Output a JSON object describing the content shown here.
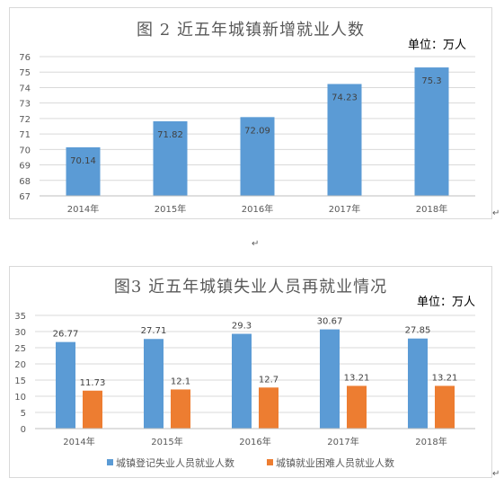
{
  "chart_data": [
    {
      "type": "bar",
      "title": "图 2 近五年城镇新增就业人数",
      "unit_label": "单位：万人",
      "categories": [
        "2014年",
        "2015年",
        "2016年",
        "2017年",
        "2018年"
      ],
      "series": [
        {
          "values": [
            70.14,
            71.82,
            72.09,
            74.23,
            75.3
          ],
          "color": "#5b9bd5"
        }
      ],
      "data_labels": [
        "70.14",
        "71.82",
        "72.09",
        "74.23",
        "75.3"
      ],
      "yticks": [
        "67",
        "68",
        "69",
        "70",
        "71",
        "72",
        "73",
        "74",
        "75",
        "76"
      ],
      "ylim": [
        67,
        76
      ],
      "grid": true,
      "legend": "none"
    },
    {
      "type": "bar",
      "title": "图3 近五年城镇失业人员再就业情况",
      "unit_label": "单位：万人",
      "categories": [
        "2014年",
        "2015年",
        "2016年",
        "2017年",
        "2018年"
      ],
      "series": [
        {
          "name": "城镇登记失业人员就业人数",
          "values": [
            26.77,
            27.71,
            29.3,
            30.67,
            27.85
          ],
          "color": "#5b9bd5",
          "data_labels": [
            "26.77",
            "27.71",
            "29.3",
            "30.67",
            "27.85"
          ]
        },
        {
          "name": "城镇就业困难人员就业人数",
          "values": [
            11.73,
            12.1,
            12.7,
            13.21,
            13.21
          ],
          "color": "#ed7d31",
          "data_labels": [
            "11.73",
            "12.1",
            "12.7",
            "13.21",
            "13.21"
          ]
        }
      ],
      "yticks": [
        "0",
        "5",
        "10",
        "15",
        "20",
        "25",
        "30",
        "35"
      ],
      "ylim": [
        0,
        35
      ],
      "grid": true,
      "legend": "bottom"
    }
  ]
}
